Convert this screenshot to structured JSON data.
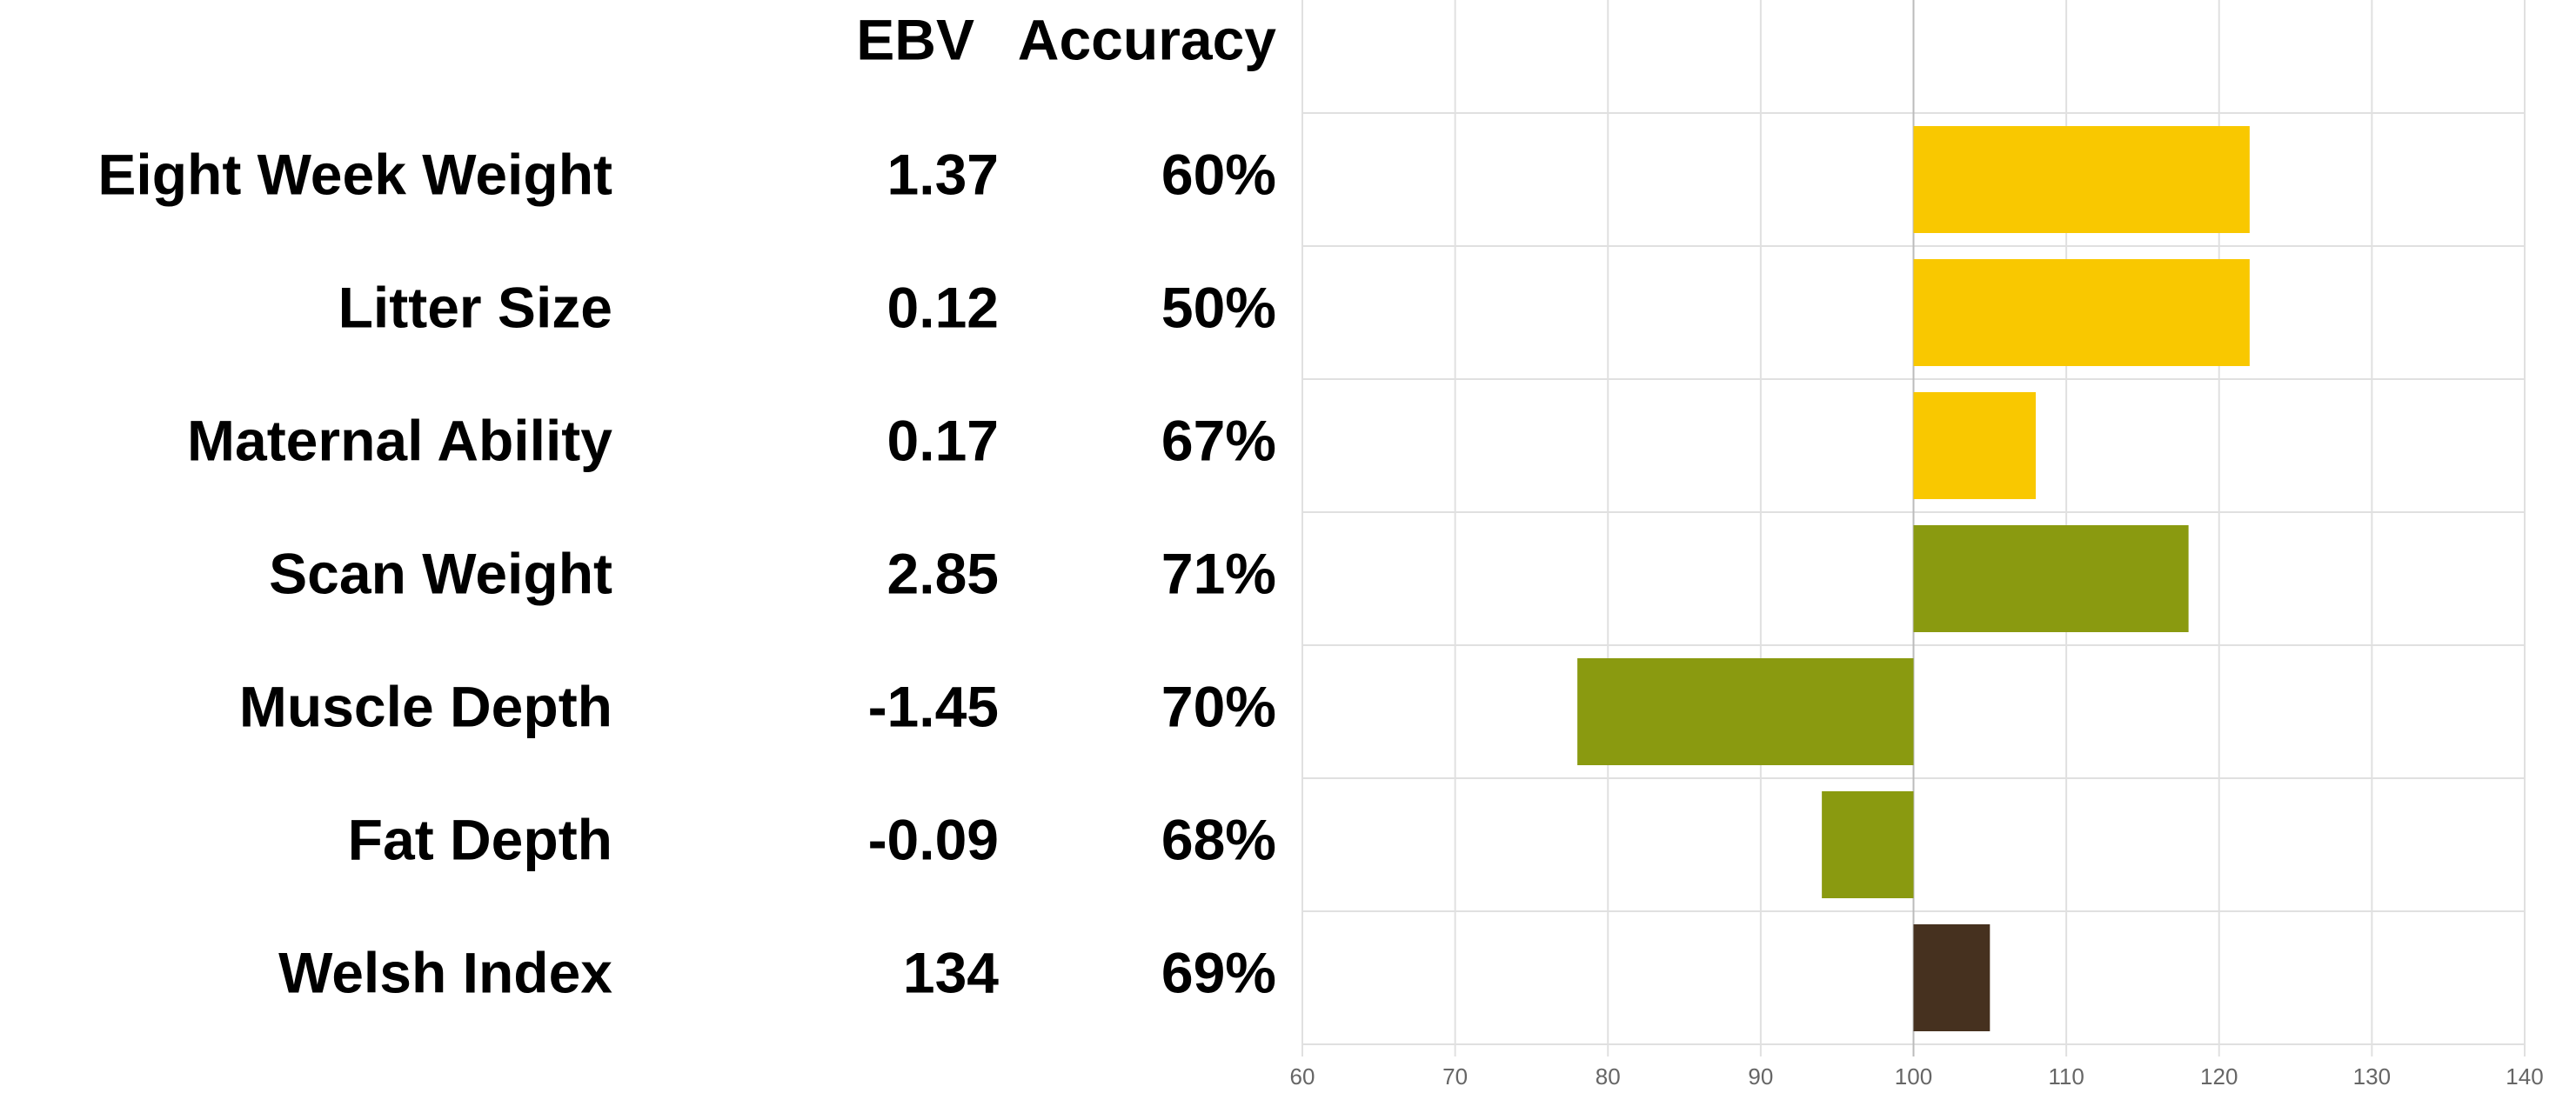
{
  "chart_data": {
    "type": "bar",
    "headers": [
      "EBV",
      "Accuracy"
    ],
    "categories": [
      "Eight Week Weight",
      "Litter Size",
      "Maternal Ability",
      "Scan Weight",
      "Muscle Depth",
      "Fat Depth",
      "Welsh Index"
    ],
    "ebv": [
      1.37,
      0.12,
      0.17,
      2.85,
      -1.45,
      -0.09,
      134
    ],
    "accuracy": [
      "60%",
      "50%",
      "67%",
      "71%",
      "70%",
      "68%",
      "69%"
    ],
    "values": [
      122,
      122,
      108,
      118,
      78,
      94,
      105
    ],
    "colors": [
      "#f9c800",
      "#f9c800",
      "#f9c800",
      "#8a9a10",
      "#8a9a10",
      "#8a9a10",
      "#46311f"
    ],
    "base": 100,
    "xlim": [
      60,
      140
    ],
    "xticks": [
      60,
      70,
      80,
      90,
      100,
      110,
      120,
      130,
      140
    ],
    "grid": true
  }
}
